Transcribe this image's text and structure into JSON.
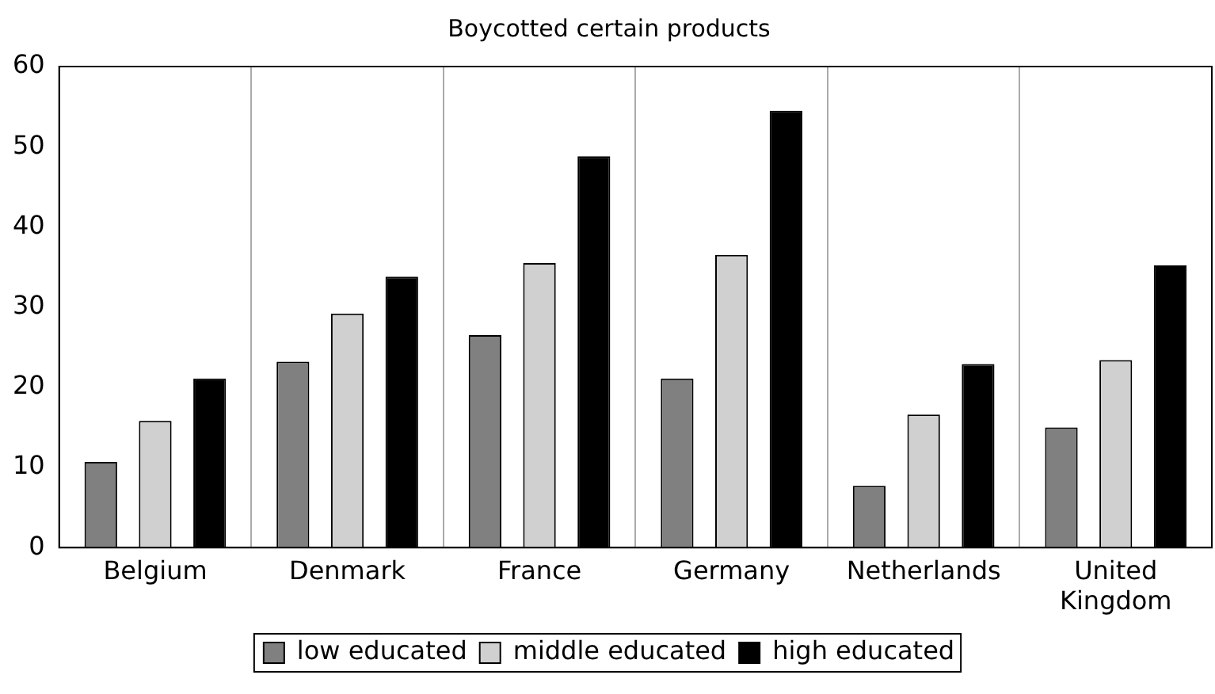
{
  "chart_data": {
    "type": "bar",
    "title": "Boycotted certain products",
    "categories": [
      "Belgium",
      "Denmark",
      "France",
      "Germany",
      "Netherlands",
      "United Kingdom"
    ],
    "series": [
      {
        "name": "low educated",
        "color": "#808080",
        "values": [
          10.7,
          23.2,
          26.5,
          21.1,
          7.7,
          15
        ]
      },
      {
        "name": "middle educated",
        "color": "#d0d0d0",
        "values": [
          15.8,
          29.2,
          35.5,
          36.5,
          16.6,
          23.4
        ]
      },
      {
        "name": "high educated",
        "color": "#000000",
        "values": [
          21.1,
          33.8,
          48.8,
          54.5,
          22.9,
          35.2
        ]
      }
    ],
    "ylim": [
      0,
      60
    ],
    "yticks": [
      0,
      10,
      20,
      30,
      40,
      50,
      60
    ],
    "grid": "x",
    "legend": "bottom"
  }
}
